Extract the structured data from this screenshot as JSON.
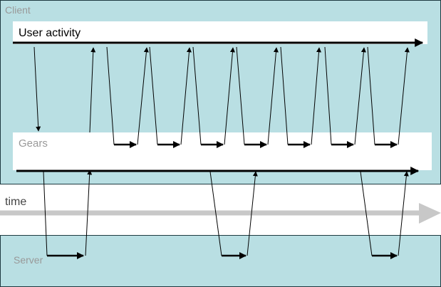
{
  "client": {
    "label": "Client",
    "fill": "#b9dfe3"
  },
  "user_activity": {
    "label": "User activity"
  },
  "gears": {
    "label": "Gears"
  },
  "time": {
    "label": "time",
    "arrow_color": "#c8c8c8"
  },
  "server": {
    "label": "Server",
    "fill": "#b9dfe3"
  },
  "colors": {
    "border": "#1e3a40",
    "muted_label": "#999999",
    "line": "#000000"
  }
}
